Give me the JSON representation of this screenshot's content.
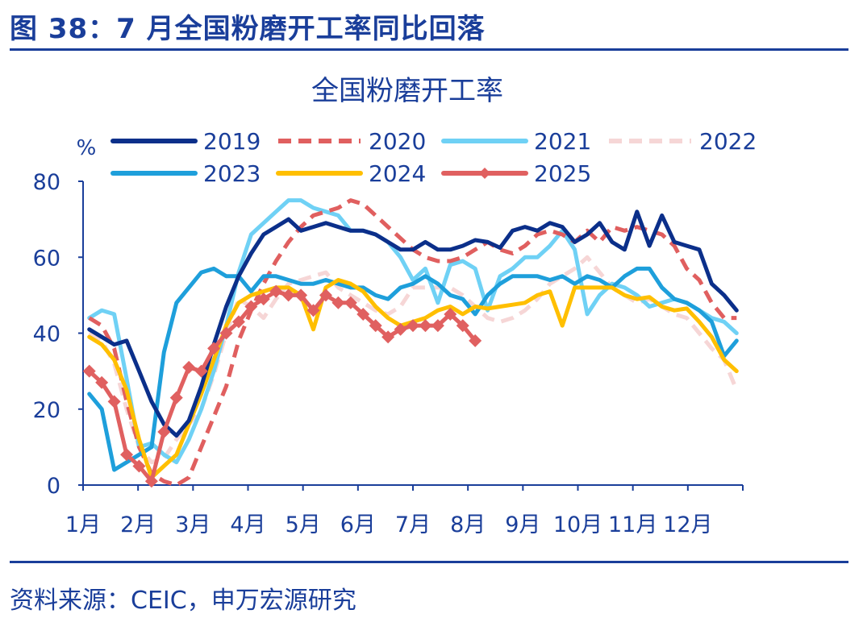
{
  "figure_label": "图 38：7 月全国粉磨开工率同比回落",
  "source_text": "资料来源：CEIC，申万宏源研究",
  "chart_data": {
    "type": "line",
    "title": "全国粉磨开工率",
    "ylabel": "%",
    "ylim": [
      0,
      80
    ],
    "yticks": [
      0,
      20,
      40,
      60,
      80
    ],
    "xlim": [
      0,
      53
    ],
    "x_unit": "week",
    "x_tick_labels": [
      "1月",
      "2月",
      "3月",
      "4月",
      "5月",
      "6月",
      "7月",
      "8月",
      "9月",
      "10月",
      "11月",
      "12月"
    ],
    "grid": false,
    "legend_position": "top",
    "series": [
      {
        "name": "2019",
        "color": "#0b2f8a",
        "style": "solid",
        "marker": "none",
        "x": [
          0.5,
          1.5,
          2.5,
          3.5,
          4.5,
          5.5,
          6.5,
          7.5,
          8.5,
          9.5,
          10.5,
          11.5,
          12.5,
          13.5,
          14.5,
          15.5,
          16.5,
          17.5,
          18.5,
          19.5,
          20.5,
          21.5,
          22.5,
          23.5,
          24.5,
          25.5,
          26.5,
          27.5,
          28.5,
          29.5,
          30.5,
          31.5,
          32.5,
          33.5,
          34.5,
          35.5,
          36.5,
          37.5,
          38.5,
          39.5,
          40.5,
          41.5,
          42.5,
          43.5,
          44.5,
          45.5,
          46.5,
          47.5,
          48.5,
          49.5,
          50.5,
          51.5,
          52.5
        ],
        "values": [
          41,
          39,
          37,
          38,
          30,
          22,
          16,
          13,
          17,
          26,
          37,
          47,
          55,
          61,
          66,
          68,
          70,
          67,
          68,
          69,
          68,
          67,
          67,
          66,
          64,
          62,
          62,
          64,
          62,
          62,
          63,
          64.5,
          64,
          62.5,
          67,
          68,
          67,
          69,
          68,
          64,
          66,
          69,
          64,
          62,
          72,
          63,
          71,
          64,
          63,
          62,
          53,
          50,
          46
        ]
      },
      {
        "name": "2020",
        "color": "#e05f5f",
        "style": "dashed",
        "marker": "none",
        "x": [
          0.5,
          1.5,
          2.5,
          3.5,
          4.5,
          5.5,
          6.5,
          7.5,
          8.5,
          9.5,
          10.5,
          11.5,
          12.5,
          13.5,
          14.5,
          15.5,
          16.5,
          17.5,
          18.5,
          19.5,
          20.5,
          21.5,
          22.5,
          23.5,
          24.5,
          25.5,
          26.5,
          27.5,
          28.5,
          29.5,
          30.5,
          31.5,
          32.5,
          33.5,
          34.5,
          35.5,
          36.5,
          37.5,
          38.5,
          39.5,
          40.5,
          41.5,
          42.5,
          43.5,
          44.5,
          45.5,
          46.5,
          47.5,
          48.5,
          49.5,
          50.5,
          51.5,
          52.5
        ],
        "values": [
          44,
          42,
          36,
          22,
          10,
          3,
          1,
          0,
          2,
          10,
          18,
          26,
          38,
          46,
          53,
          59,
          64,
          68,
          71,
          72,
          73,
          75,
          74,
          71,
          68,
          65,
          62,
          60,
          59,
          59,
          60,
          62,
          64,
          62,
          61,
          63,
          66,
          67,
          66,
          64,
          67,
          64,
          68,
          67,
          68,
          67,
          66,
          63,
          57,
          54,
          48,
          44,
          44
        ]
      },
      {
        "name": "2021",
        "color": "#6fd1f5",
        "style": "solid",
        "marker": "none",
        "x": [
          0.5,
          1.5,
          2.5,
          3.5,
          4.5,
          5.5,
          6.5,
          7.5,
          8.5,
          9.5,
          10.5,
          11.5,
          12.5,
          13.5,
          14.5,
          15.5,
          16.5,
          17.5,
          18.5,
          19.5,
          20.5,
          21.5,
          22.5,
          23.5,
          24.5,
          25.5,
          26.5,
          27.5,
          28.5,
          29.5,
          30.5,
          31.5,
          32.5,
          33.5,
          34.5,
          35.5,
          36.5,
          37.5,
          38.5,
          39.5,
          40.5,
          41.5,
          42.5,
          43.5,
          44.5,
          45.5,
          46.5,
          47.5,
          48.5,
          49.5,
          50.5,
          51.5,
          52.5
        ],
        "values": [
          44,
          46,
          45,
          28,
          10,
          11,
          8,
          6,
          12,
          20,
          30,
          42,
          56,
          66,
          69,
          72,
          75,
          75,
          73,
          72,
          71,
          67,
          67,
          66,
          64,
          60,
          54,
          57,
          48,
          58,
          59,
          57,
          46,
          55,
          57,
          60,
          60,
          63,
          67,
          62,
          45,
          50,
          53,
          52,
          50,
          47,
          48,
          49,
          48,
          46,
          44,
          43,
          40
        ]
      },
      {
        "name": "2022",
        "color": "#f6d6d6",
        "style": "dashed",
        "marker": "none",
        "x": [
          0.5,
          1.5,
          2.5,
          3.5,
          4.5,
          5.5,
          6.5,
          7.5,
          8.5,
          9.5,
          10.5,
          11.5,
          12.5,
          13.5,
          14.5,
          15.5,
          16.5,
          17.5,
          18.5,
          19.5,
          20.5,
          21.5,
          22.5,
          23.5,
          24.5,
          25.5,
          26.5,
          27.5,
          28.5,
          29.5,
          30.5,
          31.5,
          32.5,
          33.5,
          34.5,
          35.5,
          36.5,
          37.5,
          38.5,
          39.5,
          40.5,
          41.5,
          42.5,
          43.5,
          44.5,
          45.5,
          46.5,
          47.5,
          48.5,
          49.5,
          50.5,
          51.5,
          52.5
        ],
        "values": [
          40,
          38,
          32,
          20,
          10,
          6,
          7,
          12,
          16,
          20,
          29,
          40,
          49,
          47,
          44,
          49,
          53,
          54,
          55,
          56,
          52,
          50,
          48,
          46,
          45,
          47,
          52,
          52,
          52,
          52,
          50,
          47,
          44,
          43,
          44,
          46,
          49,
          53,
          55,
          57,
          60,
          56,
          52,
          50,
          48,
          49,
          47,
          45,
          44,
          40,
          36,
          33,
          25
        ]
      },
      {
        "name": "2023",
        "color": "#1e9fdb",
        "style": "solid",
        "marker": "none",
        "x": [
          0.5,
          1.5,
          2.5,
          3.5,
          4.5,
          5.5,
          6.5,
          7.5,
          8.5,
          9.5,
          10.5,
          11.5,
          12.5,
          13.5,
          14.5,
          15.5,
          16.5,
          17.5,
          18.5,
          19.5,
          20.5,
          21.5,
          22.5,
          23.5,
          24.5,
          25.5,
          26.5,
          27.5,
          28.5,
          29.5,
          30.5,
          31.5,
          32.5,
          33.5,
          34.5,
          35.5,
          36.5,
          37.5,
          38.5,
          39.5,
          40.5,
          41.5,
          42.5,
          43.5,
          44.5,
          45.5,
          46.5,
          47.5,
          48.5,
          49.5,
          50.5,
          51.5,
          52.5
        ],
        "values": [
          24,
          20,
          4,
          6,
          8,
          10,
          35,
          48,
          52,
          56,
          57,
          55,
          55,
          51,
          55,
          55,
          54,
          53,
          53,
          54,
          53,
          52,
          52,
          50,
          49,
          52,
          53,
          55,
          53,
          50,
          49,
          45,
          50,
          53,
          55,
          55,
          55,
          54,
          55,
          53,
          55,
          54,
          52,
          55,
          57,
          57,
          52,
          49,
          48,
          46,
          43,
          34,
          38
        ]
      },
      {
        "name": "2024",
        "color": "#ffbf00",
        "style": "solid",
        "marker": "none",
        "x": [
          0.5,
          1.5,
          2.5,
          3.5,
          4.5,
          5.5,
          6.5,
          7.5,
          8.5,
          9.5,
          10.5,
          11.5,
          12.5,
          13.5,
          14.5,
          15.5,
          16.5,
          17.5,
          18.5,
          19.5,
          20.5,
          21.5,
          22.5,
          23.5,
          24.5,
          25.5,
          26.5,
          27.5,
          28.5,
          29.5,
          30.5,
          31.5,
          32.5,
          33.5,
          34.5,
          35.5,
          36.5,
          37.5,
          38.5,
          39.5,
          40.5,
          41.5,
          42.5,
          43.5,
          44.5,
          45.5,
          46.5,
          47.5,
          48.5,
          49.5,
          50.5,
          51.5,
          52.5
        ],
        "values": [
          39,
          37,
          33,
          25,
          12,
          2,
          5,
          8,
          16,
          24,
          33,
          42,
          48,
          50,
          51,
          52,
          52,
          50,
          41,
          52,
          54,
          53,
          51,
          47,
          44,
          42,
          43,
          44,
          46,
          47,
          45,
          47,
          46.5,
          47,
          47.5,
          48,
          50,
          51,
          42,
          52,
          52,
          52,
          52,
          50,
          49,
          49.5,
          47,
          46,
          46.5,
          43,
          39,
          33,
          30
        ]
      },
      {
        "name": "2025",
        "color": "#e06060",
        "style": "solid",
        "marker": "diamond",
        "x": [
          0.5,
          1.5,
          2.5,
          3.5,
          4.5,
          5.5,
          6.5,
          7.5,
          8.5,
          9.5,
          10.5,
          11.5,
          12.5,
          13.5,
          14.5,
          15.5,
          16.5,
          17.5,
          18.5,
          19.5,
          20.5,
          21.5,
          22.5,
          23.5,
          24.5,
          25.5,
          26.5,
          27.5,
          28.5,
          29.5,
          30.5,
          31.5
        ],
        "values": [
          30,
          27,
          22,
          8,
          5,
          1,
          14,
          23,
          31,
          30,
          36,
          40,
          43,
          47,
          49,
          51,
          50,
          50,
          46,
          50,
          48,
          48,
          45,
          42,
          39,
          41,
          42,
          42,
          42,
          45,
          42,
          38
        ]
      }
    ]
  }
}
